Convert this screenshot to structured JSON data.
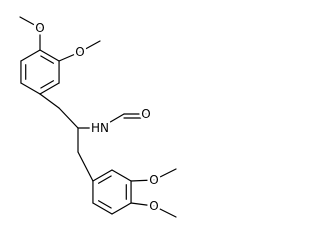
{
  "atoms": {
    "methoxy_top_1": "O",
    "methoxy_top_2": "O",
    "amide_n": "HN",
    "formyl_o": "O",
    "methoxy_bottom_1": "O",
    "methoxy_bottom_2": "O"
  }
}
